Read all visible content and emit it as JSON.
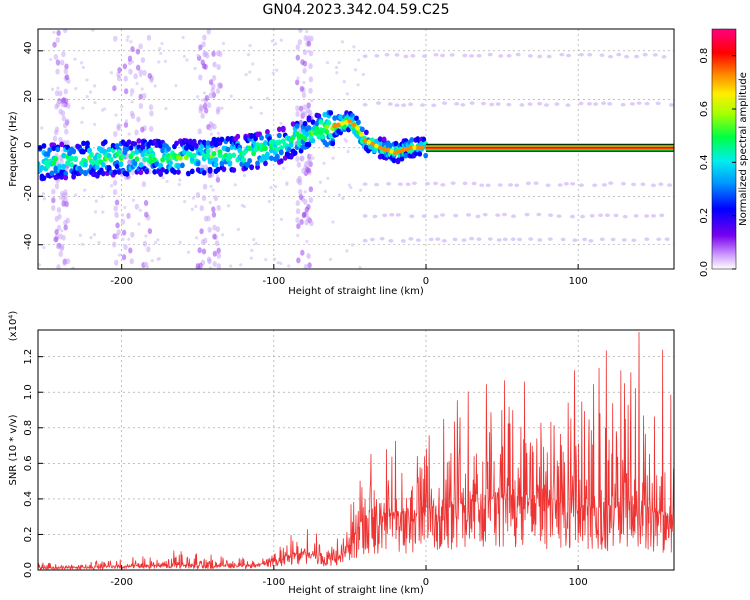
{
  "title": "GN04.2023.342.04.59.C25",
  "chart_data": [
    {
      "type": "heatmap",
      "xlabel": "Height of straight line (km)",
      "ylabel": "Frequency (Hz)",
      "xlim": [
        -255,
        163
      ],
      "ylim": [
        -50,
        49
      ],
      "xticks": [
        -200,
        -100,
        0,
        100
      ],
      "yticks": [
        -40,
        -20,
        0,
        20,
        40
      ],
      "grid": true,
      "ridge": [
        {
          "x": -255,
          "y": -6
        },
        {
          "x": -200,
          "y": -4
        },
        {
          "x": -150,
          "y": -4
        },
        {
          "x": -120,
          "y": -2
        },
        {
          "x": -100,
          "y": 0
        },
        {
          "x": -80,
          "y": 5
        },
        {
          "x": -60,
          "y": 9
        },
        {
          "x": -50,
          "y": 11
        },
        {
          "x": -45,
          "y": 8
        },
        {
          "x": -40,
          "y": 3
        },
        {
          "x": -30,
          "y": 0
        },
        {
          "x": -20,
          "y": -2
        },
        {
          "x": -10,
          "y": 0
        },
        {
          "x": 0,
          "y": 0
        },
        {
          "x": 163,
          "y": 0
        }
      ],
      "colorbar": {
        "label": "Normalized spectral amplitude",
        "range": [
          0,
          0.9
        ],
        "ticks": [
          "0.0",
          "0.2",
          "0.4",
          "0.6",
          "0.8"
        ]
      }
    },
    {
      "type": "line",
      "xlabel": "Height of straight line (km)",
      "ylabel": "SNR (10 * v/v)",
      "scale_label": "(x10⁴)",
      "xlim": [
        -255,
        163
      ],
      "ylim": [
        0,
        1.35
      ],
      "xticks": [
        -200,
        -100,
        0,
        100
      ],
      "yticks": [
        "0.0",
        "0.2",
        "0.4",
        "0.6",
        "0.8",
        "1.0",
        "1.2"
      ],
      "grid": true,
      "color": "#ee3333",
      "envelope": [
        {
          "x": -255,
          "base": 0.01,
          "peak": 0.04
        },
        {
          "x": -200,
          "base": 0.02,
          "peak": 0.06
        },
        {
          "x": -165,
          "base": 0.03,
          "peak": 0.12
        },
        {
          "x": -140,
          "base": 0.02,
          "peak": 0.09
        },
        {
          "x": -110,
          "base": 0.03,
          "peak": 0.06
        },
        {
          "x": -90,
          "base": 0.08,
          "peak": 0.2
        },
        {
          "x": -80,
          "base": 0.1,
          "peak": 0.25
        },
        {
          "x": -60,
          "base": 0.05,
          "peak": 0.15
        },
        {
          "x": -50,
          "base": 0.15,
          "peak": 0.35
        },
        {
          "x": -40,
          "base": 0.3,
          "peak": 0.7
        },
        {
          "x": -30,
          "base": 0.3,
          "peak": 0.75
        },
        {
          "x": -20,
          "base": 0.3,
          "peak": 0.8
        },
        {
          "x": -10,
          "base": 0.3,
          "peak": 0.6
        },
        {
          "x": 0,
          "base": 0.35,
          "peak": 0.8
        },
        {
          "x": 10,
          "base": 0.35,
          "peak": 1.05
        },
        {
          "x": 40,
          "base": 0.4,
          "peak": 1.1
        },
        {
          "x": 70,
          "base": 0.4,
          "peak": 1.15
        },
        {
          "x": 100,
          "base": 0.35,
          "peak": 1.2
        },
        {
          "x": 130,
          "base": 0.35,
          "peak": 1.15
        },
        {
          "x": 163,
          "base": 0.3,
          "peak": 1.1
        }
      ]
    }
  ]
}
